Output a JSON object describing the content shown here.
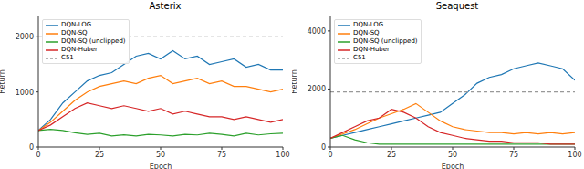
{
  "chart_data": [
    {
      "type": "line",
      "title": "Asterix",
      "x_label": "Epoch",
      "y_label": "Return",
      "x": [
        0,
        5,
        10,
        15,
        20,
        25,
        30,
        35,
        40,
        45,
        50,
        55,
        60,
        65,
        70,
        75,
        80,
        85,
        90,
        95,
        100
      ],
      "xlim": [
        0,
        100
      ],
      "xticks": [
        0,
        25,
        50,
        75,
        100
      ],
      "ylim": [
        0,
        2370
      ],
      "yticks": [
        0,
        1000,
        2000
      ],
      "grid": false,
      "legend": "upper left",
      "series": [
        {
          "name": "DQN-LOG",
          "color": "#1f77b4",
          "values": [
            300,
            500,
            800,
            1000,
            1200,
            1300,
            1350,
            1500,
            1650,
            1700,
            1600,
            1750,
            1600,
            1650,
            1500,
            1550,
            1600,
            1450,
            1500,
            1400,
            1400
          ]
        },
        {
          "name": "DQN-SQ",
          "color": "#ff7f0e",
          "values": [
            300,
            450,
            650,
            850,
            1000,
            1100,
            1150,
            1200,
            1150,
            1250,
            1300,
            1150,
            1200,
            1250,
            1150,
            1200,
            1100,
            1100,
            1050,
            1000,
            1050
          ]
        },
        {
          "name": "DQN-SQ (unclipped)",
          "color": "#2ca02c",
          "values": [
            300,
            320,
            300,
            260,
            230,
            250,
            200,
            220,
            200,
            230,
            220,
            200,
            230,
            220,
            250,
            230,
            200,
            250,
            220,
            240,
            250
          ]
        },
        {
          "name": "DQN-Huber",
          "color": "#d62728",
          "values": [
            300,
            400,
            550,
            700,
            800,
            750,
            700,
            750,
            700,
            650,
            700,
            600,
            650,
            600,
            550,
            550,
            500,
            550,
            500,
            450,
            500
          ]
        },
        {
          "name": "C51",
          "color": "#999999",
          "line_style": "dashed",
          "values": [
            2000,
            2000,
            2000,
            2000,
            2000,
            2000,
            2000,
            2000,
            2000,
            2000,
            2000,
            2000,
            2000,
            2000,
            2000,
            2000,
            2000,
            2000,
            2000,
            2000,
            2000
          ]
        }
      ]
    },
    {
      "type": "line",
      "title": "Seaquest",
      "x_label": "Epoch",
      "y_label": "Return",
      "x": [
        0,
        5,
        10,
        15,
        20,
        25,
        30,
        35,
        40,
        45,
        50,
        55,
        60,
        65,
        70,
        75,
        80,
        85,
        90,
        95,
        100
      ],
      "xlim": [
        0,
        100
      ],
      "xticks": [
        0,
        25,
        50,
        75,
        100
      ],
      "ylim": [
        0,
        4500
      ],
      "yticks": [
        0,
        2000,
        4000
      ],
      "grid": false,
      "legend": "upper left",
      "series": [
        {
          "name": "DQN-LOG",
          "color": "#1f77b4",
          "values": [
            300,
            400,
            500,
            600,
            700,
            800,
            900,
            1000,
            1100,
            1200,
            1500,
            1800,
            2200,
            2400,
            2500,
            2700,
            2800,
            2900,
            2800,
            2700,
            2300
          ]
        },
        {
          "name": "DQN-SQ",
          "color": "#ff7f0e",
          "values": [
            300,
            450,
            600,
            800,
            1000,
            1150,
            1300,
            1500,
            1200,
            900,
            700,
            600,
            550,
            500,
            500,
            450,
            500,
            450,
            500,
            450,
            500
          ]
        },
        {
          "name": "DQN-SQ (unclipped)",
          "color": "#2ca02c",
          "values": [
            300,
            400,
            250,
            150,
            100,
            100,
            100,
            100,
            100,
            100,
            100,
            100,
            100,
            100,
            100,
            100,
            100,
            100,
            100,
            100,
            100
          ]
        },
        {
          "name": "DQN-Huber",
          "color": "#d62728",
          "values": [
            300,
            500,
            700,
            900,
            1000,
            1300,
            1200,
            1000,
            700,
            500,
            400,
            300,
            250,
            200,
            200,
            150,
            150,
            150,
            100,
            100,
            100
          ]
        },
        {
          "name": "C51",
          "color": "#999999",
          "line_style": "dashed",
          "values": [
            1900,
            1900,
            1900,
            1900,
            1900,
            1900,
            1900,
            1900,
            1900,
            1900,
            1900,
            1900,
            1900,
            1900,
            1900,
            1900,
            1900,
            1900,
            1900,
            1900,
            1900
          ]
        }
      ]
    }
  ]
}
